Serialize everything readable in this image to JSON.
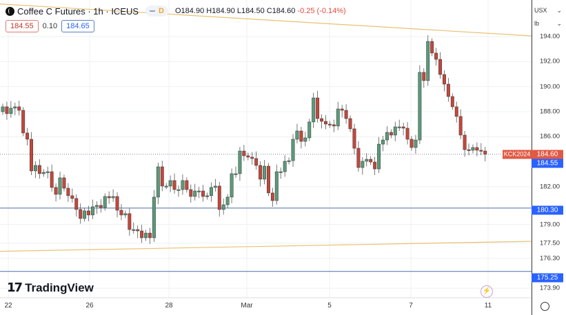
{
  "header": {
    "symbol_title": "Coffee C Futures · 1h · ICEUS",
    "badge": "D",
    "open": "O184.90",
    "high": "H184.90",
    "low": "L184.50",
    "close": "C184.60",
    "change": "-0.25 (-0.14%)",
    "bid": "184.55",
    "spread": "0.10",
    "ask": "184.65"
  },
  "axis": {
    "currency": "USX",
    "unit": "lb",
    "price_labels": [
      "194.00",
      "192.00",
      "190.00",
      "188.00",
      "186.00",
      "182.00",
      "179.00",
      "177.50",
      "176.30",
      "173.90"
    ],
    "symbol_tag": "KCK2024",
    "last_price": "184.60",
    "bid_tag": "184.55",
    "level_1": "180.30",
    "level_2": "175.25"
  },
  "time_labels": [
    "22",
    "26",
    "28",
    "Mar",
    "5",
    "7",
    "11"
  ],
  "branding": "TradingView",
  "colors": {
    "up": "#5b9a7a",
    "down": "#c4473a",
    "trend": "#e8c170",
    "level": "#4a6fa5",
    "last": "#e05a46",
    "tag_blue": "#2962ff"
  },
  "chart_data": {
    "type": "candlestick",
    "first_open": 188.0,
    "closes": [
      188.39,
      187.84,
      188.28,
      188.39,
      188.11,
      186.3,
      185.8,
      183.27,
      183.71,
      183.05,
      183.16,
      183.21,
      181.95,
      181.4,
      182.72,
      181.89,
      181.29,
      181.07,
      180.19,
      179.47,
      180.08,
      179.75,
      180.41,
      180.52,
      180.35,
      181.23,
      181.12,
      181.23,
      180.13,
      179.75,
      179.86,
      178.59,
      178.59,
      178.48,
      177.93,
      178.31,
      177.93,
      181.18,
      183.6,
      182.06,
      182.06,
      182.5,
      181.78,
      181.78,
      182.5,
      181.78,
      181.23,
      181.67,
      181.67,
      181.23,
      181.29,
      181.95,
      182.06,
      180.19,
      180.57,
      181.18,
      183.05,
      183.05,
      184.86,
      184.48,
      184.37,
      184.26,
      183.71,
      182.61,
      183.65,
      181.51,
      180.9,
      183.21,
      183.21,
      184.04,
      184.09,
      185.8,
      186.46,
      185.63,
      185.91,
      187.18,
      189.1,
      187.45,
      187.23,
      187.01,
      186.96,
      186.85,
      188.22,
      188.11,
      187.45,
      186.63,
      185.08,
      183.54,
      184.04,
      184.2,
      183.98,
      183.43,
      185.41,
      185.74,
      186.35,
      186.13,
      186.79,
      186.79,
      186.68,
      185.8,
      185.14,
      185.74,
      191.14,
      190.48,
      193.61,
      192.68,
      192.18,
      190.97,
      190.2,
      189.21,
      188.39,
      187.62,
      186.13,
      184.97,
      184.92,
      185.14,
      184.92,
      184.86,
      184.6
    ],
    "trendlines": [
      {
        "from": 196.6,
        "to": 194.05
      },
      {
        "from": 176.85,
        "to": 177.65
      }
    ],
    "levels": [
      180.3,
      175.25
    ],
    "last": 184.6
  }
}
